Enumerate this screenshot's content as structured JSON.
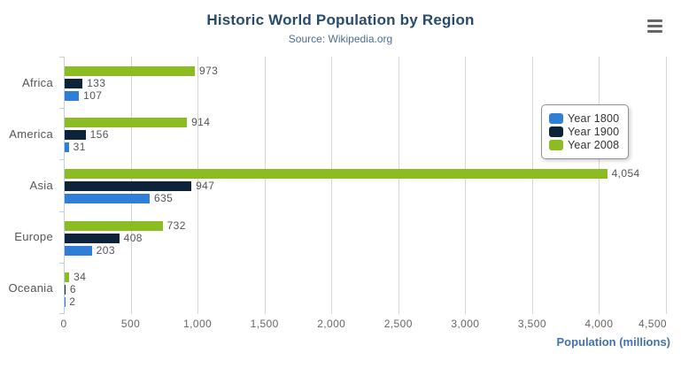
{
  "chart_data": {
    "type": "bar",
    "title": "Historic World Population by Region",
    "subtitle": "Source: Wikipedia.org",
    "categories": [
      "Africa",
      "America",
      "Asia",
      "Europe",
      "Oceania"
    ],
    "series": [
      {
        "name": "Year 1800",
        "color": "#2f7ed8",
        "values": [
          107,
          31,
          635,
          203,
          2
        ]
      },
      {
        "name": "Year 1900",
        "color": "#0d233a",
        "values": [
          133,
          156,
          947,
          408,
          6
        ]
      },
      {
        "name": "Year 2008",
        "color": "#8bbc21",
        "values": [
          973,
          914,
          4054,
          732,
          34
        ]
      }
    ],
    "bar_order_top_to_bottom": [
      "Year 2008",
      "Year 1900",
      "Year 1800"
    ],
    "data_labels_visible": true,
    "xlabel": "Population (millions)",
    "ylabel": "",
    "xlim": [
      0,
      4500
    ],
    "xticks": [
      0,
      500,
      1000,
      1500,
      2000,
      2500,
      3000,
      3500,
      4000,
      4500
    ],
    "xtick_labels": [
      "0",
      "500",
      "1,000",
      "1,500",
      "2,000",
      "2,500",
      "3,000",
      "3,500",
      "4,000",
      "4,500"
    ],
    "grid": true,
    "legend_position": "right-overlay"
  },
  "export_menu": {
    "icon": "hamburger-icon"
  },
  "ui_colors": {
    "title": "#274b6d",
    "subtitle": "#4d6d94",
    "axis_title": "#4572a7",
    "axis_line": "#c0d0e0",
    "gridline": "#d6d6d6",
    "tick_label": "#666666",
    "category_label": "#555555",
    "data_label": "#555555",
    "legend_border": "#909090",
    "menu_icon": "#666666"
  }
}
